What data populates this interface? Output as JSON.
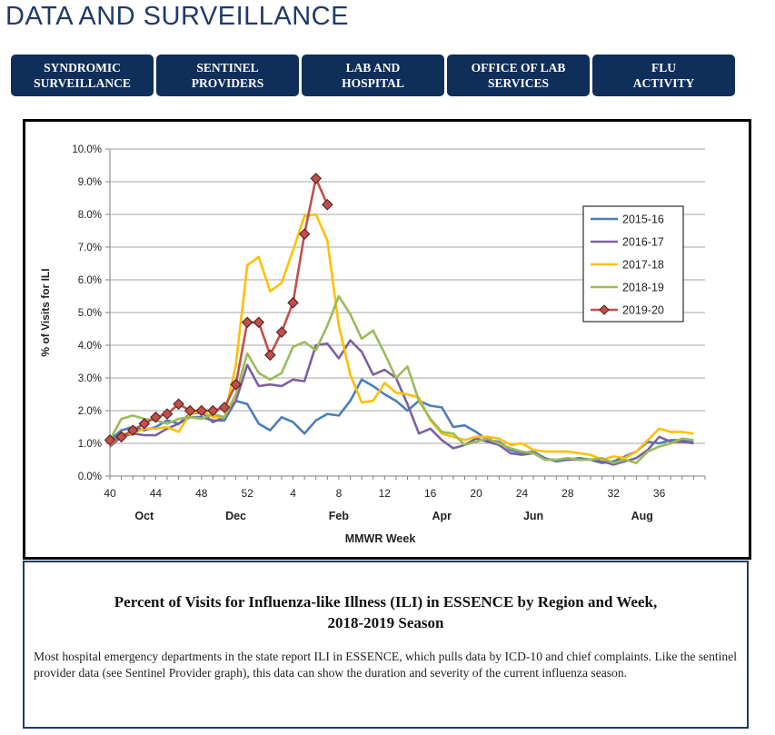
{
  "page": {
    "title": "DATA AND SURVEILLANCE"
  },
  "nav": {
    "items": [
      {
        "line1": "SYNDROMIC",
        "line2": "SURVEILLANCE"
      },
      {
        "line1": "SENTINEL",
        "line2": "PROVIDERS"
      },
      {
        "line1": "LAB AND",
        "line2": "HOSPITAL"
      },
      {
        "line1": "OFFICE OF LAB",
        "line2": "SERVICES"
      },
      {
        "line1": "FLU",
        "line2": "ACTIVITY"
      }
    ]
  },
  "chart_data": {
    "type": "line",
    "xlabel": "MMWR Week",
    "ylabel": "% of Visits for ILI",
    "ylim": [
      0,
      10
    ],
    "y_ticks": [
      0,
      1,
      2,
      3,
      4,
      5,
      6,
      7,
      8,
      9,
      10
    ],
    "y_tick_labels": [
      "0.0%",
      "1.0%",
      "2.0%",
      "3.0%",
      "4.0%",
      "5.0%",
      "6.0%",
      "7.0%",
      "8.0%",
      "9.0%",
      "10.0%"
    ],
    "x_index_range": [
      0,
      52
    ],
    "x_tick_labels": [
      "40",
      "44",
      "48",
      "52",
      "4",
      "8",
      "12",
      "16",
      "20",
      "24",
      "28",
      "32",
      "36"
    ],
    "x_tick_index": [
      0,
      4,
      8,
      12,
      16,
      20,
      24,
      28,
      32,
      36,
      40,
      44,
      48
    ],
    "month_labels": [
      "Oct",
      "Dec",
      "Feb",
      "Apr",
      "Jun",
      "Aug"
    ],
    "month_index": [
      3,
      11,
      20,
      29,
      37,
      46.5
    ],
    "legend_position": "right",
    "series": [
      {
        "name": "2015-16",
        "color": "#4a7ebb",
        "marker": false,
        "values": [
          1.1,
          1.4,
          1.5,
          1.4,
          1.5,
          1.7,
          1.6,
          1.8,
          1.8,
          1.7,
          1.7,
          2.3,
          2.2,
          1.6,
          1.4,
          1.8,
          1.65,
          1.3,
          1.7,
          1.9,
          1.85,
          2.3,
          2.95,
          2.75,
          2.5,
          2.3,
          2.0,
          2.3,
          2.15,
          2.1,
          1.5,
          1.55,
          1.35,
          1.1,
          1.05,
          0.8,
          0.7,
          0.75,
          0.55,
          0.45,
          0.5,
          0.55,
          0.5,
          0.4,
          0.45,
          0.6,
          0.75,
          1.05,
          1.0,
          1.1,
          1.1,
          1.05
        ]
      },
      {
        "name": "2016-17",
        "color": "#7d60a0",
        "marker": false,
        "values": [
          0.9,
          1.2,
          1.3,
          1.25,
          1.25,
          1.45,
          1.6,
          1.9,
          1.95,
          1.65,
          1.8,
          2.3,
          3.4,
          2.75,
          2.8,
          2.75,
          2.95,
          2.9,
          4.0,
          4.05,
          3.6,
          4.15,
          3.8,
          3.1,
          3.25,
          3.0,
          2.2,
          1.3,
          1.45,
          1.1,
          0.85,
          0.95,
          1.15,
          1.05,
          0.95,
          0.7,
          0.65,
          0.7,
          0.5,
          0.5,
          0.5,
          0.5,
          0.5,
          0.45,
          0.35,
          0.45,
          0.55,
          0.8,
          1.2,
          1.05,
          1.05,
          1.0
        ]
      },
      {
        "name": "2017-18",
        "color": "#ffc000",
        "marker": false,
        "values": [
          0.95,
          1.3,
          1.3,
          1.45,
          1.45,
          1.5,
          1.35,
          1.9,
          2.0,
          1.8,
          1.8,
          3.4,
          6.45,
          6.7,
          5.65,
          5.9,
          6.9,
          7.95,
          8.0,
          7.2,
          4.6,
          3.1,
          2.25,
          2.3,
          2.85,
          2.55,
          2.5,
          2.4,
          1.7,
          1.3,
          1.2,
          1.1,
          1.2,
          1.2,
          1.15,
          0.95,
          1.0,
          0.8,
          0.75,
          0.75,
          0.75,
          0.7,
          0.65,
          0.5,
          0.6,
          0.55,
          0.75,
          1.1,
          1.45,
          1.35,
          1.35,
          1.3
        ]
      },
      {
        "name": "2018-19",
        "color": "#9bbb59",
        "marker": false,
        "values": [
          1.1,
          1.75,
          1.85,
          1.75,
          1.7,
          1.6,
          1.75,
          1.8,
          1.75,
          1.9,
          1.8,
          2.5,
          3.75,
          3.15,
          2.95,
          3.15,
          3.95,
          4.1,
          3.85,
          4.6,
          5.5,
          4.95,
          4.2,
          4.45,
          3.75,
          3.0,
          3.35,
          2.3,
          1.75,
          1.35,
          1.3,
          0.95,
          1.05,
          1.15,
          1.0,
          0.85,
          0.75,
          0.7,
          0.5,
          0.5,
          0.55,
          0.5,
          0.5,
          0.55,
          0.4,
          0.5,
          0.4,
          0.75,
          0.9,
          1.0,
          1.15,
          1.1
        ]
      },
      {
        "name": "2019-20",
        "color": "#c0504d",
        "marker": true,
        "values": [
          1.1,
          1.2,
          1.4,
          1.6,
          1.8,
          1.9,
          2.2,
          2.0,
          2.0,
          2.0,
          2.1,
          2.8,
          4.7,
          4.7,
          3.7,
          4.4,
          5.3,
          7.4,
          9.1,
          8.3
        ]
      }
    ]
  }
}
